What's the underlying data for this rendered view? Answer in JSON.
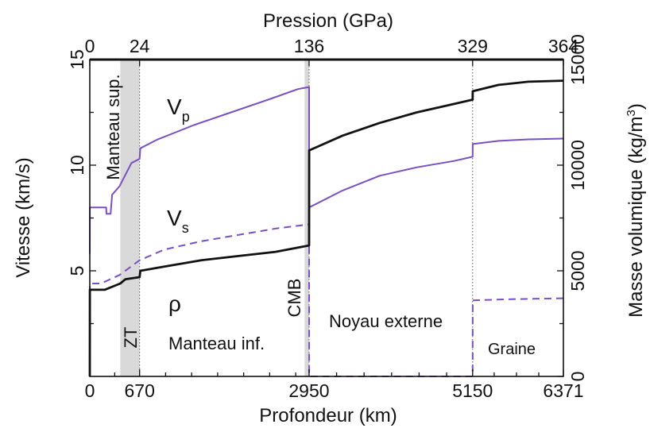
{
  "chart_data": {
    "type": "line",
    "xlabel": "Profondeur (km)",
    "top_label": "Pression (GPa)",
    "ylabel_left": "Vitesse (km/s)",
    "ylabel_right": "Masse volumique (kg/m",
    "ylabel_right_sup": "3",
    "ylabel_right_end": ")",
    "xlim": [
      0,
      6371
    ],
    "ylim_left": [
      0,
      15
    ],
    "ylim_right": [
      0,
      15000
    ],
    "x_ticks": [
      {
        "value": 0,
        "label": "0"
      },
      {
        "value": 670,
        "label": "670"
      },
      {
        "value": 2950,
        "label": "2950"
      },
      {
        "value": 5150,
        "label": "5150"
      },
      {
        "value": 6371,
        "label": "6371"
      }
    ],
    "x_minor_ticks": [
      335,
      1020,
      1370,
      1720,
      2070,
      2420,
      2770,
      3320,
      3690,
      4060,
      4430,
      4800,
      5440,
      5740,
      6040
    ],
    "top_ticks": [
      {
        "depth": 0,
        "label": "0"
      },
      {
        "depth": 670,
        "label": "24"
      },
      {
        "depth": 2950,
        "label": "136"
      },
      {
        "depth": 5150,
        "label": "329"
      },
      {
        "depth": 6371,
        "label": "364"
      }
    ],
    "left_ticks": [
      {
        "value": 5,
        "label": "5"
      },
      {
        "value": 10,
        "label": "10"
      },
      {
        "value": 15,
        "label": "15"
      }
    ],
    "left_minor_ticks": [
      2.5,
      7.5,
      12.5
    ],
    "right_ticks": [
      {
        "value": 0,
        "label": "0"
      },
      {
        "value": 5000,
        "label": "5000"
      },
      {
        "value": 10000,
        "label": "10000"
      },
      {
        "value": 15000,
        "label": "15000"
      }
    ],
    "right_minor_ticks": [
      2500,
      7500,
      12500
    ],
    "shaded_bands": [
      {
        "x0": 410,
        "x1": 670,
        "color": "#d9d9d9"
      },
      {
        "x0": 2890,
        "x1": 2950,
        "color": "#d9d9d9"
      }
    ],
    "boundary_lines": [
      670,
      2950,
      5150
    ],
    "series": [
      {
        "name": "Vp",
        "color": "#7a4fc0",
        "style": "solid",
        "points": [
          [
            0,
            5.8
          ],
          [
            1,
            8.0
          ],
          [
            220,
            8.0
          ],
          [
            225,
            7.7
          ],
          [
            280,
            7.7
          ],
          [
            300,
            8.6
          ],
          [
            400,
            9.0
          ],
          [
            560,
            10.1
          ],
          [
            670,
            10.3
          ],
          [
            680,
            10.8
          ],
          [
            900,
            11.2
          ],
          [
            1400,
            11.9
          ],
          [
            1900,
            12.5
          ],
          [
            2400,
            13.1
          ],
          [
            2800,
            13.6
          ],
          [
            2950,
            13.7
          ],
          [
            2951,
            8.0
          ],
          [
            3400,
            8.8
          ],
          [
            3900,
            9.5
          ],
          [
            4400,
            9.9
          ],
          [
            4900,
            10.2
          ],
          [
            5150,
            10.4
          ],
          [
            5151,
            11.0
          ],
          [
            5500,
            11.15
          ],
          [
            5900,
            11.22
          ],
          [
            6371,
            11.26
          ]
        ]
      },
      {
        "name": "Vs",
        "color": "#7a4fc0",
        "style": "dashed",
        "points": [
          [
            0,
            0
          ],
          [
            1,
            4.4
          ],
          [
            150,
            4.4
          ],
          [
            400,
            4.8
          ],
          [
            670,
            5.5
          ],
          [
            1000,
            6.0
          ],
          [
            1500,
            6.4
          ],
          [
            2000,
            6.7
          ],
          [
            2500,
            7.0
          ],
          [
            2950,
            7.2
          ],
          [
            2951,
            0
          ],
          [
            5150,
            0
          ],
          [
            5151,
            3.6
          ],
          [
            5600,
            3.65
          ],
          [
            6371,
            3.7
          ]
        ]
      },
      {
        "name": "rho",
        "color": "#111111",
        "style": "solid",
        "points": [
          [
            0,
            0
          ],
          [
            1,
            4.1
          ],
          [
            200,
            4.1
          ],
          [
            410,
            4.4
          ],
          [
            480,
            4.6
          ],
          [
            670,
            4.7
          ],
          [
            680,
            5.0
          ],
          [
            1000,
            5.2
          ],
          [
            1500,
            5.5
          ],
          [
            2000,
            5.7
          ],
          [
            2500,
            5.9
          ],
          [
            2950,
            6.2
          ],
          [
            2951,
            10.7
          ],
          [
            3400,
            11.4
          ],
          [
            3900,
            12.0
          ],
          [
            4400,
            12.5
          ],
          [
            4900,
            12.9
          ],
          [
            5150,
            13.1
          ],
          [
            5151,
            13.5
          ],
          [
            5500,
            13.8
          ],
          [
            5900,
            13.95
          ],
          [
            6371,
            14.0
          ]
        ]
      }
    ],
    "annotations": {
      "vp_main": "V",
      "vp_sub": "p",
      "vs_main": "V",
      "vs_sub": "s",
      "rho": "ρ",
      "manteau_sup": "Manteau sup.",
      "zt": "ZT",
      "manteau_inf": "Manteau inf.",
      "cmb": "CMB",
      "noyau_externe": "Noyau externe",
      "graine": "Graine"
    },
    "grid": false,
    "legend": "none"
  }
}
